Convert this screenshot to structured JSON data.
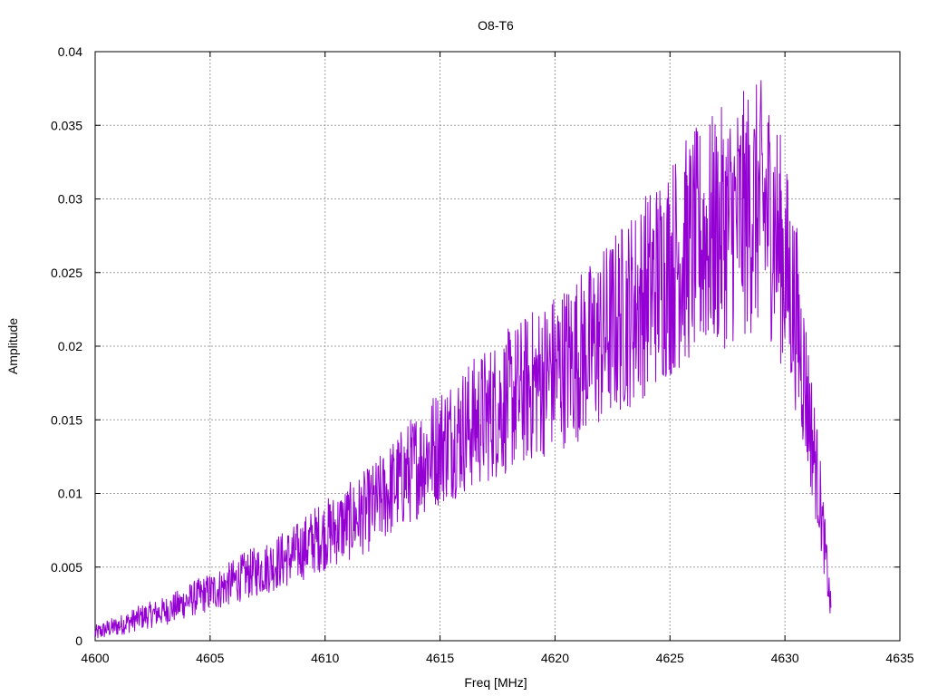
{
  "chart_data": {
    "type": "line",
    "title": "O8-T6",
    "xlabel": "Freq [MHz]",
    "ylabel": "Amplitude",
    "xlim": [
      4600,
      4635
    ],
    "ylim": [
      0,
      0.04
    ],
    "x_ticks": [
      4600,
      4605,
      4610,
      4615,
      4620,
      4625,
      4630,
      4635
    ],
    "y_ticks": [
      0,
      0.005,
      0.01,
      0.015,
      0.02,
      0.025,
      0.03,
      0.035,
      0.04
    ],
    "x_tick_labels": [
      "4600",
      "4605",
      "4610",
      "4615",
      "4620",
      "4625",
      "4630",
      "4635"
    ],
    "y_tick_labels": [
      "0",
      "0.005",
      "0.01",
      "0.015",
      "0.02",
      "0.025",
      "0.03",
      "0.035",
      "0.04"
    ],
    "grid": true,
    "series_color": "#9400d3",
    "series": [
      {
        "x": [
          4600.0,
          4600.5,
          4601.0,
          4601.5,
          4602.0,
          4602.5,
          4603.0,
          4603.5,
          4604.0,
          4604.5,
          4605.0,
          4605.5,
          4606.0,
          4606.5,
          4607.0,
          4607.5,
          4608.0,
          4608.5,
          4609.0,
          4609.5,
          4610.0,
          4610.5,
          4611.0,
          4611.5,
          4612.0,
          4612.5,
          4613.0,
          4613.5,
          4614.0,
          4614.5,
          4615.0,
          4615.5,
          4616.0,
          4616.5,
          4617.0,
          4617.5,
          4618.0,
          4618.5,
          4619.0,
          4619.5,
          4620.0,
          4620.5,
          4621.0,
          4621.5,
          4622.0,
          4622.5,
          4623.0,
          4623.5,
          4624.0,
          4624.5,
          4625.0,
          4625.5,
          4626.0,
          4626.5,
          4627.0,
          4627.5,
          4628.0,
          4628.5,
          4629.0,
          4629.5,
          4630.0,
          4630.5,
          4631.0,
          4631.5,
          4632.0
        ],
        "y": [
          0.0005,
          0.0008,
          0.001,
          0.0013,
          0.0016,
          0.0018,
          0.002,
          0.0023,
          0.0027,
          0.003,
          0.0033,
          0.0036,
          0.004,
          0.0044,
          0.0047,
          0.005,
          0.0054,
          0.0057,
          0.0062,
          0.0068,
          0.0072,
          0.0076,
          0.008,
          0.0085,
          0.009,
          0.0097,
          0.0105,
          0.0112,
          0.012,
          0.0127,
          0.0133,
          0.0138,
          0.0143,
          0.0148,
          0.0153,
          0.0158,
          0.0163,
          0.0168,
          0.0173,
          0.0178,
          0.0183,
          0.0188,
          0.0193,
          0.0198,
          0.0205,
          0.0213,
          0.0221,
          0.0228,
          0.0237,
          0.0245,
          0.0253,
          0.0262,
          0.0268,
          0.0273,
          0.0278,
          0.0282,
          0.0287,
          0.0292,
          0.0295,
          0.0285,
          0.0255,
          0.022,
          0.016,
          0.01,
          0.002
        ]
      }
    ]
  }
}
